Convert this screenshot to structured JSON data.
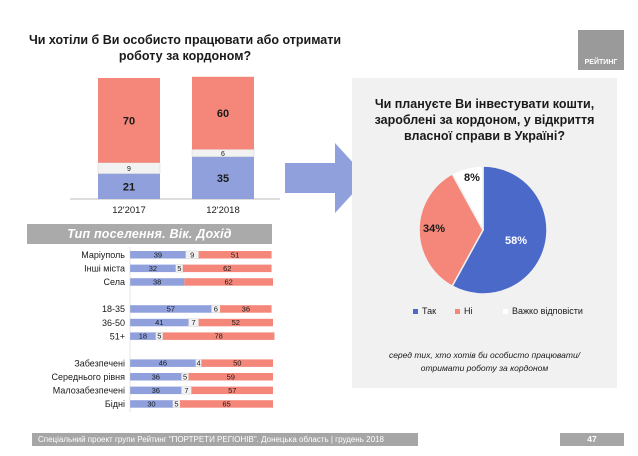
{
  "left_title": "Чи хотіли б Ви особисто працювати або отримати роботу за кордоном?",
  "logo_text": "РЕЙТИНГ",
  "right_title": "Чи плануєте Ви інвестувати кошти, зароблені за кордоном, у відкриття власної справи в Україні?",
  "segment_banner": "Тип поселення. Вік. Дохід",
  "note": "серед тих, хто хотів би особисто працювати/отримати роботу за кордоном",
  "footer_text": "Спеціальний проект групи Рейтинг \"ПОРТРЕТИ РЕГІОНІВ\". Донецька область | грудень 2018",
  "page_number": "47",
  "colors": {
    "yes": "#8fa0dc",
    "no": "#f4877a",
    "hard": "#f2f2f2",
    "pie_blue": "#4b69c8",
    "pie_red": "#f4877a",
    "pie_white": "#ffffff",
    "grey": "#a6a6a6"
  },
  "chart_data": [
    {
      "type": "bar",
      "stacked": true,
      "categories": [
        "12'2017",
        "12'2018"
      ],
      "series": [
        {
          "values": [
            21,
            35
          ],
          "color": "#8fa0dc"
        },
        {
          "values": [
            9,
            6
          ],
          "color": "#f2f2f2"
        },
        {
          "values": [
            70,
            60
          ],
          "color": "#f4877a"
        }
      ]
    },
    {
      "type": "pie",
      "title": "Чи плануєте Ви інвестувати кошти, зароблені за кордоном, у відкриття власної справи в Україні?",
      "labels": [
        "Так",
        "Ні",
        "Важко відповісти"
      ],
      "values": [
        58,
        34,
        8
      ],
      "value_labels": [
        "58%",
        "34%",
        "8%"
      ],
      "colors": [
        "#4b69c8",
        "#f4877a",
        "#ffffff"
      ],
      "legend": "bottom"
    },
    {
      "type": "bar",
      "orientation": "horizontal",
      "stacked": true,
      "title": "Тип поселення. Вік. Дохід",
      "groups": [
        {
          "categories": [
            "Маріуполь",
            "Інші міста",
            "Села"
          ]
        },
        {
          "categories": [
            "18-35",
            "36-50",
            "51+"
          ]
        },
        {
          "categories": [
            "Забезпечені",
            "Середнього рівня",
            "Малозабезпечені",
            "Бідні"
          ]
        }
      ],
      "series": [
        {
          "values": [
            39,
            32,
            38,
            57,
            41,
            18,
            46,
            36,
            36,
            30
          ],
          "color": "#8fa0dc"
        },
        {
          "values": [
            9,
            5,
            null,
            6,
            7,
            5,
            4,
            5,
            7,
            5
          ],
          "color": "#f2f2f2"
        },
        {
          "values": [
            51,
            62,
            62,
            36,
            52,
            78,
            50,
            59,
            57,
            65
          ],
          "color": "#f4877a"
        }
      ],
      "xlim": [
        0,
        100
      ]
    }
  ]
}
